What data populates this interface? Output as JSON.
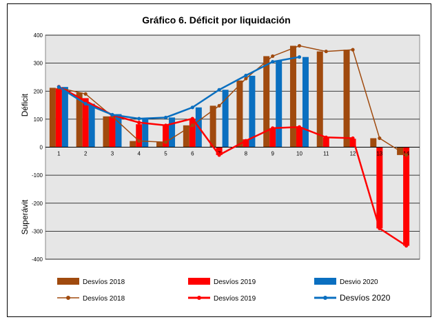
{
  "chart_data": {
    "type": "bar",
    "title": "Gráfico 6. Déficit por liquidación",
    "ylabel_top": "Déficit",
    "ylabel_bottom": "Superávit",
    "ylim": [
      -400,
      400
    ],
    "yticks": [
      400,
      300,
      200,
      100,
      0,
      -100,
      -200,
      -300,
      -400
    ],
    "categories": [
      "1",
      "2",
      "3",
      "4",
      "5",
      "6",
      "7",
      "8",
      "9",
      "10",
      "11",
      "12",
      "13",
      "14"
    ],
    "grid": true,
    "legend_position": "bottom",
    "bar_series": [
      {
        "name": "Desvíos 2018",
        "color": "#a04a0e",
        "values": [
          212,
          195,
          110,
          22,
          18,
          78,
          148,
          238,
          325,
          362,
          342,
          348,
          32,
          -28
        ]
      },
      {
        "name": "Desvíos 2019",
        "color": "#ff0000",
        "values": [
          210,
          175,
          110,
          82,
          78,
          102,
          -28,
          28,
          68,
          72,
          35,
          30,
          -290,
          -352
        ]
      },
      {
        "name": "Desvio 2020",
        "color": "#0a6fc0",
        "values": [
          215,
          155,
          118,
          103,
          106,
          142,
          205,
          255,
          308,
          322,
          null,
          null,
          null,
          null
        ]
      }
    ],
    "line_series": [
      {
        "name": "Desvíos 2018",
        "color": "#a04a0e",
        "values": [
          212,
          190,
          110,
          22,
          18,
          78,
          148,
          245,
          325,
          362,
          342,
          348,
          32,
          -28
        ]
      },
      {
        "name": "Desvíos 2019",
        "color": "#ff0000",
        "values": [
          216,
          165,
          115,
          88,
          78,
          102,
          -28,
          23,
          68,
          72,
          35,
          32,
          -290,
          -352
        ]
      },
      {
        "name": "Desvíos 2020",
        "color": "#0a6fc0",
        "values": [
          215,
          155,
          116,
          102,
          106,
          142,
          205,
          256,
          305,
          322,
          null,
          null,
          null,
          null
        ]
      }
    ]
  }
}
